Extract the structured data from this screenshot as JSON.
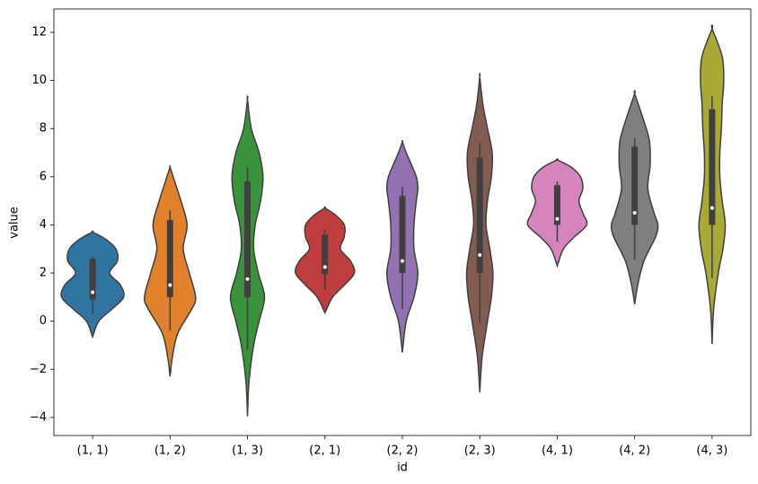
{
  "chart_data": {
    "type": "violin",
    "x_label": "id",
    "y_label": "value",
    "categories": [
      "(1, 1)",
      "(1, 2)",
      "(1, 3)",
      "(2, 1)",
      "(2, 2)",
      "(2, 3)",
      "(4, 1)",
      "(4, 2)",
      "(4, 3)"
    ],
    "ylim": [
      -4.75,
      12.97
    ],
    "yticks": [
      {
        "value": -4,
        "label": "−4"
      },
      {
        "value": -2,
        "label": "−2"
      },
      0,
      2,
      4,
      6,
      8,
      10,
      12
    ],
    "violins": [
      {
        "color": "#3274a1",
        "density_y": [
          -0.65,
          0,
          0.5,
          1.0,
          1.5,
          2.0,
          2.5,
          3.0,
          3.4,
          3.7
        ],
        "density_width": [
          0,
          0.08,
          0.25,
          0.4,
          0.36,
          0.22,
          0.32,
          0.3,
          0.17,
          0
        ],
        "whisker_low": 0.3,
        "q1": 0.9,
        "median": 1.2,
        "q3": 2.6,
        "whisker_high": 2.7
      },
      {
        "color": "#e1812c",
        "density_y": [
          -2.3,
          -1.5,
          -0.5,
          0.5,
          1.0,
          2.0,
          3.0,
          4.0,
          5.0,
          6.0,
          6.4
        ],
        "density_width": [
          0,
          0.03,
          0.1,
          0.28,
          0.33,
          0.25,
          0.17,
          0.22,
          0.14,
          0.04,
          0
        ],
        "whisker_low": -0.4,
        "q1": 1.0,
        "median": 1.5,
        "q3": 4.2,
        "whisker_high": 4.6
      },
      {
        "color": "#3a923a",
        "density_y": [
          -3.95,
          -2.5,
          -1,
          0,
          1,
          2,
          3,
          4,
          5,
          6,
          7,
          8,
          9.2
        ],
        "density_width": [
          0,
          0.02,
          0.08,
          0.15,
          0.22,
          0.14,
          0.08,
          0.1,
          0.17,
          0.2,
          0.15,
          0.05,
          0
        ],
        "whisker_low": -1.2,
        "q1": 1.0,
        "median": 1.75,
        "q3": 5.8,
        "whisker_high": 6.4
      },
      {
        "color": "#c03d3e",
        "density_y": [
          0.35,
          1,
          1.5,
          2,
          2.5,
          3,
          3.5,
          4,
          4.4,
          4.7
        ],
        "density_width": [
          0,
          0.1,
          0.25,
          0.38,
          0.33,
          0.2,
          0.25,
          0.25,
          0.14,
          0
        ],
        "whisker_low": 1.3,
        "q1": 1.95,
        "median": 2.25,
        "q3": 3.6,
        "whisker_high": 3.8
      },
      {
        "color": "#9372b2",
        "density_y": [
          -1.3,
          0,
          1,
          2,
          3,
          4,
          5,
          5.5,
          6,
          7,
          7.45
        ],
        "density_width": [
          0,
          0.05,
          0.15,
          0.2,
          0.15,
          0.15,
          0.18,
          0.2,
          0.18,
          0.05,
          0
        ],
        "whisker_low": 0.5,
        "q1": 2.0,
        "median": 2.5,
        "q3": 5.2,
        "whisker_high": 5.6
      },
      {
        "color": "#845b53",
        "density_y": [
          -2.95,
          -1.5,
          0,
          1,
          2,
          3,
          4,
          5,
          6,
          7,
          8,
          9,
          10.15
        ],
        "density_width": [
          0,
          0.03,
          0.1,
          0.15,
          0.17,
          0.13,
          0.08,
          0.1,
          0.15,
          0.16,
          0.1,
          0.04,
          0
        ],
        "whisker_low": -0.1,
        "q1": 2.0,
        "median": 2.75,
        "q3": 6.8,
        "whisker_high": 7.4
      },
      {
        "color": "#d684bd",
        "density_y": [
          2.3,
          3,
          3.5,
          4,
          4.5,
          5,
          5.5,
          6,
          6.4,
          6.7
        ],
        "density_width": [
          0,
          0.08,
          0.22,
          0.38,
          0.33,
          0.28,
          0.33,
          0.3,
          0.18,
          0
        ],
        "whisker_low": 3.3,
        "q1": 4.0,
        "median": 4.25,
        "q3": 5.65,
        "whisker_high": 5.8
      },
      {
        "color": "#7f7f7f",
        "density_y": [
          0.7,
          1.5,
          2.5,
          3.5,
          4,
          4.5,
          5.5,
          6.5,
          7.5,
          8.5,
          9.45
        ],
        "density_width": [
          0,
          0.04,
          0.12,
          0.27,
          0.3,
          0.25,
          0.17,
          0.2,
          0.19,
          0.1,
          0
        ],
        "whisker_low": 2.55,
        "q1": 4.0,
        "median": 4.5,
        "q3": 7.25,
        "whisker_high": 7.6
      },
      {
        "color": "#a9aa35",
        "density_y": [
          -0.95,
          0.5,
          2,
          3,
          4,
          5,
          6,
          7,
          8,
          9,
          10,
          11,
          12.15
        ],
        "density_width": [
          0,
          0.02,
          0.08,
          0.14,
          0.17,
          0.13,
          0.1,
          0.1,
          0.12,
          0.13,
          0.15,
          0.13,
          0
        ],
        "whisker_low": 1.8,
        "q1": 4.0,
        "median": 4.7,
        "q3": 8.8,
        "whisker_high": 9.35
      }
    ]
  }
}
